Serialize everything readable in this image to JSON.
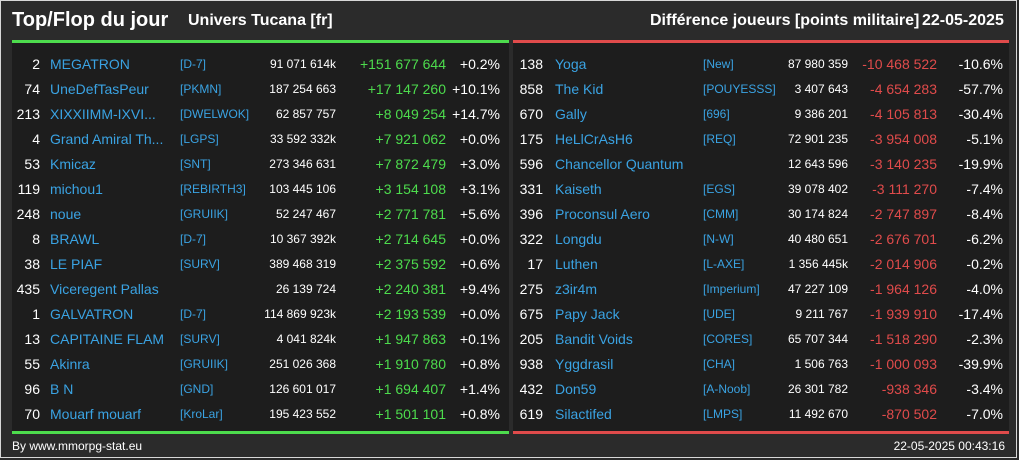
{
  "header": {
    "title": "Top/Flop du jour",
    "universe": "Univers Tucana [fr]",
    "diff_label": "Différence joueurs [points militaire]",
    "date": "22-05-2025"
  },
  "colors": {
    "positive": "#4ddc4d",
    "negative": "#e04b4b",
    "link": "#3aa3e3"
  },
  "top": [
    {
      "rank": "2",
      "name": "MEGATRON",
      "ally": "[D-7]",
      "points": "91 071 614k",
      "diff": "+151 677 644",
      "pct": "+0.2%"
    },
    {
      "rank": "74",
      "name": "UneDefTasPeur",
      "ally": "[PKMN]",
      "points": "187 254 663",
      "diff": "+17 147 260",
      "pct": "+10.1%"
    },
    {
      "rank": "213",
      "name": "XIXXIIMM-IXVI...",
      "ally": "[DWELWOK]",
      "points": "62 857 757",
      "diff": "+8 049 254",
      "pct": "+14.7%"
    },
    {
      "rank": "4",
      "name": "Grand Amiral Th...",
      "ally": "[LGPS]",
      "points": "33 592 332k",
      "diff": "+7 921 062",
      "pct": "+0.0%"
    },
    {
      "rank": "53",
      "name": "Kmicaz",
      "ally": "[SNT]",
      "points": "273 346 631",
      "diff": "+7 872 479",
      "pct": "+3.0%"
    },
    {
      "rank": "119",
      "name": "michou1",
      "ally": "[REBIRTH3]",
      "points": "103 445 106",
      "diff": "+3 154 108",
      "pct": "+3.1%"
    },
    {
      "rank": "248",
      "name": "noue",
      "ally": "[GRUIIK]",
      "points": "52 247 467",
      "diff": "+2 771 781",
      "pct": "+5.6%"
    },
    {
      "rank": "8",
      "name": "BRAWL",
      "ally": "[D-7]",
      "points": "10 367 392k",
      "diff": "+2 714 645",
      "pct": "+0.0%"
    },
    {
      "rank": "38",
      "name": "LE PIAF",
      "ally": "[SURV]",
      "points": "389 468 319",
      "diff": "+2 375 592",
      "pct": "+0.6%"
    },
    {
      "rank": "435",
      "name": "Viceregent Pallas",
      "ally": "",
      "points": "26 139 724",
      "diff": "+2 240 381",
      "pct": "+9.4%"
    },
    {
      "rank": "1",
      "name": "GALVATRON",
      "ally": "[D-7]",
      "points": "114 869 923k",
      "diff": "+2 193 539",
      "pct": "+0.0%"
    },
    {
      "rank": "13",
      "name": "CAPITAINE FLAM",
      "ally": "[SURV]",
      "points": "4 041 824k",
      "diff": "+1 947 863",
      "pct": "+0.1%"
    },
    {
      "rank": "55",
      "name": "Akinra",
      "ally": "[GRUIIK]",
      "points": "251 026 368",
      "diff": "+1 910 780",
      "pct": "+0.8%"
    },
    {
      "rank": "96",
      "name": "B N",
      "ally": "[GND]",
      "points": "126 601 017",
      "diff": "+1 694 407",
      "pct": "+1.4%"
    },
    {
      "rank": "70",
      "name": "Mouarf mouarf",
      "ally": "[KroLar]",
      "points": "195 423 552",
      "diff": "+1 501 101",
      "pct": "+0.8%"
    }
  ],
  "flop": [
    {
      "rank": "138",
      "name": "Yoga",
      "ally": "[New]",
      "points": "87 980 359",
      "diff": "-10 468 522",
      "pct": "-10.6%"
    },
    {
      "rank": "858",
      "name": "The Kid",
      "ally": "[POUYESSS]",
      "points": "3 407 643",
      "diff": "-4 654 283",
      "pct": "-57.7%"
    },
    {
      "rank": "670",
      "name": "Gally",
      "ally": "[696]",
      "points": "9 386 201",
      "diff": "-4 105 813",
      "pct": "-30.4%"
    },
    {
      "rank": "175",
      "name": "HeLlCrAsH6",
      "ally": "[REQ]",
      "points": "72 901 235",
      "diff": "-3 954 008",
      "pct": "-5.1%"
    },
    {
      "rank": "596",
      "name": "Chancellor Quantum",
      "ally": "",
      "points": "12 643 596",
      "diff": "-3 140 235",
      "pct": "-19.9%"
    },
    {
      "rank": "331",
      "name": "Kaiseth",
      "ally": "[EGS]",
      "points": "39 078 402",
      "diff": "-3 111 270",
      "pct": "-7.4%"
    },
    {
      "rank": "396",
      "name": "Proconsul Aero",
      "ally": "[CMM]",
      "points": "30 174 824",
      "diff": "-2 747 897",
      "pct": "-8.4%"
    },
    {
      "rank": "322",
      "name": "Longdu",
      "ally": "[N-W]",
      "points": "40 480 651",
      "diff": "-2 676 701",
      "pct": "-6.2%"
    },
    {
      "rank": "17",
      "name": "Luthen",
      "ally": "[L-AXE]",
      "points": "1 356 445k",
      "diff": "-2 014 906",
      "pct": "-0.2%"
    },
    {
      "rank": "275",
      "name": "z3ir4m",
      "ally": "[Imperium]",
      "points": "47 227 109",
      "diff": "-1 964 126",
      "pct": "-4.0%"
    },
    {
      "rank": "675",
      "name": "Papy Jack",
      "ally": "[UDE]",
      "points": "9 211 767",
      "diff": "-1 939 910",
      "pct": "-17.4%"
    },
    {
      "rank": "205",
      "name": "Bandit Voids",
      "ally": "[CORES]",
      "points": "65 707 344",
      "diff": "-1 518 290",
      "pct": "-2.3%"
    },
    {
      "rank": "938",
      "name": "Yggdrasil",
      "ally": "[CHA]",
      "points": "1 506 763",
      "diff": "-1 000 093",
      "pct": "-39.9%"
    },
    {
      "rank": "432",
      "name": "Don59",
      "ally": "[A-Noob]",
      "points": "26 301 782",
      "diff": "-938 346",
      "pct": "-3.4%"
    },
    {
      "rank": "619",
      "name": "Silactifed",
      "ally": "[LMPS]",
      "points": "11 492 670",
      "diff": "-870 502",
      "pct": "-7.0%"
    }
  ],
  "footer": {
    "source": "By www.mmorpg-stat.eu",
    "timestamp": "22-05-2025 00:43:16"
  }
}
